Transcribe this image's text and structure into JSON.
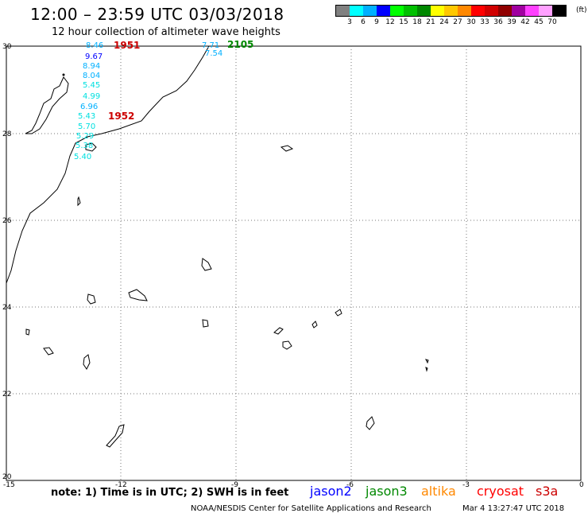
{
  "header": {
    "title": "12:00 – 23:59 UTC 03/03/2018",
    "subtitle": "12 hour collection of altimeter wave heights"
  },
  "legend": {
    "unit": "(ft)",
    "colors": [
      "#808080",
      "#00ffff",
      "#00b0ff",
      "#0000ff",
      "#00ff00",
      "#00c000",
      "#008800",
      "#ffff00",
      "#ffc800",
      "#ff8800",
      "#ff0000",
      "#d00000",
      "#900000",
      "#a000a0",
      "#ff40ff",
      "#ffa0ff",
      "#000000"
    ],
    "labels": [
      "3",
      "6",
      "9",
      "12",
      "15",
      "18",
      "21",
      "24",
      "27",
      "30",
      "33",
      "36",
      "39",
      "42",
      "45",
      "70"
    ]
  },
  "map": {
    "lat_labels": [
      "30",
      "28",
      "26",
      "24",
      "22",
      "20"
    ],
    "lon_labels": [
      "-15",
      "-12",
      "-9",
      "-6",
      "-3",
      "0"
    ],
    "pass_times": [
      {
        "label": "1951",
        "color": "#cc0000"
      },
      {
        "label": "1952",
        "color": "#cc0000"
      },
      {
        "label": "2105",
        "color": "#008800"
      }
    ],
    "wave_readings": [
      {
        "value": "8.46",
        "color": "#00b0ff"
      },
      {
        "value": "9.67",
        "color": "#0000ff"
      },
      {
        "value": "8.94",
        "color": "#00b0ff"
      },
      {
        "value": "8.04",
        "color": "#00b0ff"
      },
      {
        "value": "5.45",
        "color": "#00e0e0"
      },
      {
        "value": "4.99",
        "color": "#00e0e0"
      },
      {
        "value": "6.96",
        "color": "#00b0ff"
      },
      {
        "value": "5.43",
        "color": "#00e0e0"
      },
      {
        "value": "5.70",
        "color": "#00e0e0"
      },
      {
        "value": "5.29",
        "color": "#00e0e0"
      },
      {
        "value": "5.38",
        "color": "#00e0e0"
      },
      {
        "value": "5.40",
        "color": "#00e0e0"
      },
      {
        "value": "7.71",
        "color": "#00b0ff"
      },
      {
        "value": "7.54",
        "color": "#00b0ff"
      }
    ]
  },
  "footer": {
    "note": "note: 1) Time is in UTC; 2) SWH is in feet",
    "satellites": [
      {
        "name": "jason2",
        "color": "#0000ff"
      },
      {
        "name": "jason3",
        "color": "#008800"
      },
      {
        "name": "altika",
        "color": "#ff8800"
      },
      {
        "name": "cryosat",
        "color": "#ff0000"
      },
      {
        "name": "s3a",
        "color": "#cc0000"
      }
    ],
    "credit": "NOAA/NESDIS Center for Satellite Applications and Research",
    "generated": "Mar  4 13:27:47 UTC 2018"
  }
}
